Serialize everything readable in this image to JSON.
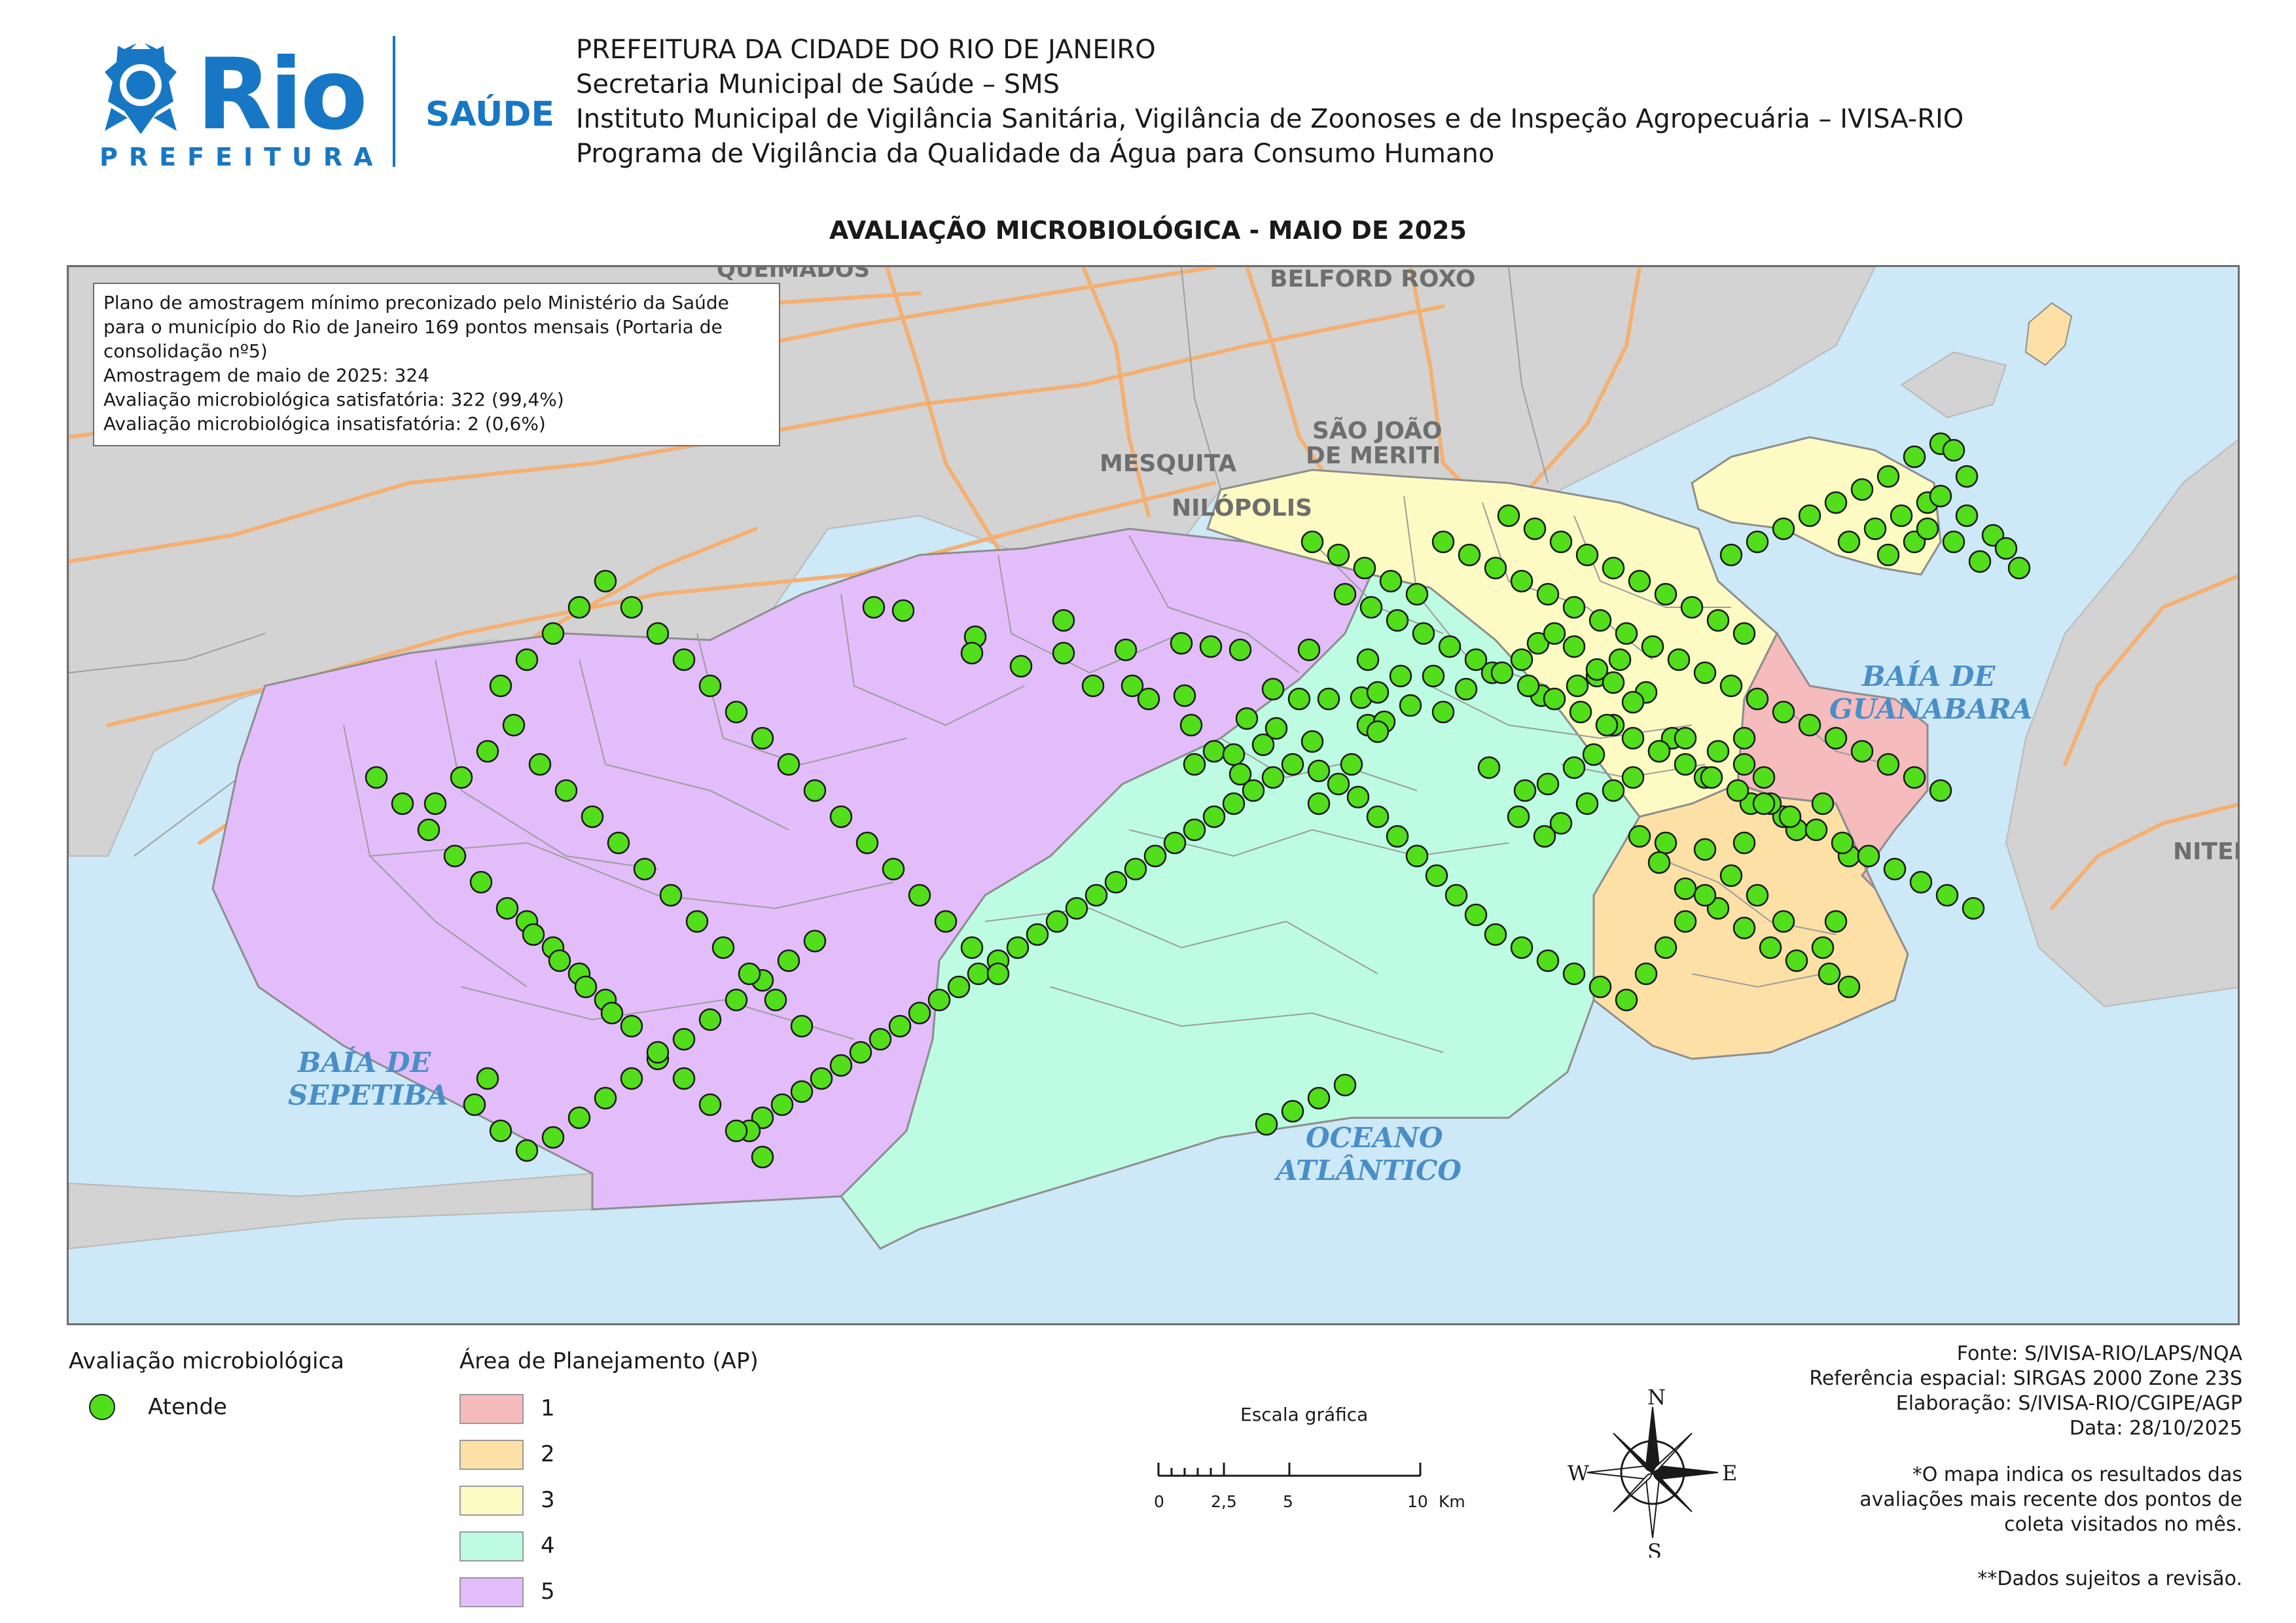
{
  "logo": {
    "word": "Rio",
    "sub": "PREFEITURA",
    "saude": "SAÚDE"
  },
  "header": {
    "lines": [
      "PREFEITURA DA CIDADE DO RIO DE JANEIRO",
      "Secretaria Municipal de Saúde – SMS",
      "Instituto Municipal de Vigilância Sanitária, Vigilância de Zoonoses e de Inspeção Agropecuária – IVISA-RIO",
      "Programa de Vigilância da Qualidade da Água para Consumo Humano"
    ]
  },
  "map": {
    "title": "AVALIAÇÃO MICROBIOLÓGICA - MAIO DE 2025",
    "colors": {
      "water": "#cde9f7",
      "land": "#d3d3d3",
      "road": "#f4b072",
      "ap1": "#f6bbbd",
      "ap2": "#fde0a6",
      "ap3": "#fdfbc3",
      "ap4": "#bdfce2",
      "ap5": "#e3bdfa",
      "point": "#52de1a"
    },
    "places": {
      "queimados": "QUEIMADOS",
      "belford_roxo": "BELFORD ROXO",
      "sao_joao_1": "SÃO JOÃO",
      "sao_joao_2": "DE MERITI",
      "mesquita": "MESQUITA",
      "nilopolis": "NILÓPOLIS",
      "niteroi": "NITER",
      "baia_guanabara_1": "BAÍA DE",
      "baia_guanabara_2": "GUANABARA",
      "baia_sepetiba_1": "BAÍA DE",
      "baia_sepetiba_2": "SEPETIBA",
      "oceano_1": "OCEANO",
      "oceano_2": "ATLÂNTICO"
    }
  },
  "info_box": {
    "lines": [
      "Plano de amostragem mínimo preconizado pelo Ministério da Saúde",
      "para o município do Rio de Janeiro 169 pontos mensais (Portaria de",
      "consolidação nº5)",
      "Amostragem de maio de 2025: 324",
      "Avaliação microbiológica satisfatória: 322 (99,4%)",
      "Avaliação microbiológica insatisfatória: 2 (0,6%)"
    ]
  },
  "legend": {
    "eval_title": "Avaliação microbiológica",
    "eval_item": "Atende",
    "ap_title": "Área de Planejamento (AP)",
    "ap_items": [
      "1",
      "2",
      "3",
      "4",
      "5"
    ]
  },
  "scale": {
    "title": "Escala gráfica",
    "labels": [
      "0",
      "2,5",
      "5",
      "10",
      "Km"
    ]
  },
  "compass": {
    "n": "N",
    "s": "S",
    "e": "E",
    "w": "W"
  },
  "credits": {
    "lines": [
      "Fonte: S/IVISA-RIO/LAPS/NQA",
      "Referência espacial: SIRGAS 2000 Zone 23S",
      "Elaboração: S/IVISA-RIO/CGIPE/AGP",
      "Data: 28/10/2025"
    ]
  },
  "notes": {
    "lines": [
      "*O mapa indica os resultados das",
      "avaliações mais recente dos pontos de",
      "coleta visitados no mês."
    ]
  },
  "disclaimer": "**Dados sujeitos a revisão."
}
